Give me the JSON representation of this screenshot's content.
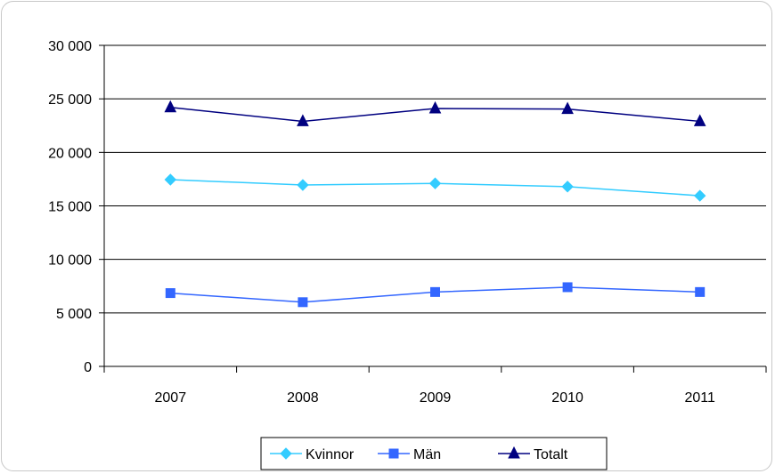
{
  "chart_data": {
    "type": "line",
    "title": "",
    "xlabel": "",
    "ylabel": "",
    "categories": [
      "2007",
      "2008",
      "2009",
      "2010",
      "2011"
    ],
    "ylim": [
      0,
      30000
    ],
    "yticks": [
      0,
      5000,
      10000,
      15000,
      20000,
      25000,
      30000
    ],
    "ytick_labels": [
      "0",
      "5 000",
      "10 000",
      "15 000",
      "20 000",
      "25 000",
      "30 000"
    ],
    "grid": true,
    "legend_position": "bottom",
    "series": [
      {
        "name": "Kvinnor",
        "marker": "diamond",
        "color": "#33ccff",
        "values": [
          17450,
          16950,
          17100,
          16800,
          15950
        ]
      },
      {
        "name": "Män",
        "marker": "square",
        "color": "#3366ff",
        "values": [
          6850,
          6000,
          6950,
          7400,
          6950
        ]
      },
      {
        "name": "Totalt",
        "marker": "triangle",
        "color": "#000080",
        "values": [
          24200,
          22900,
          24100,
          24050,
          22900
        ]
      }
    ]
  }
}
